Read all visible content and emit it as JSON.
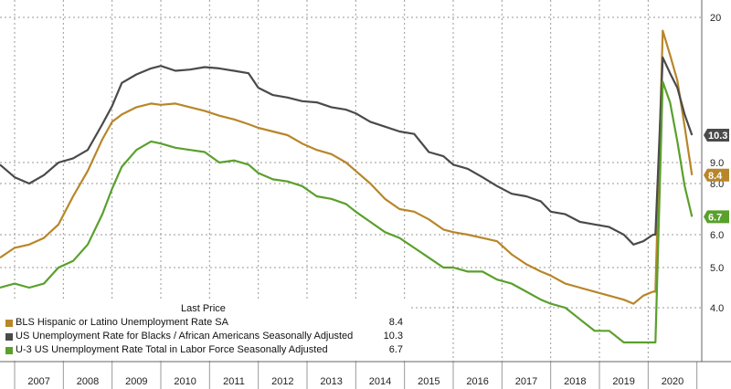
{
  "chart_data": {
    "type": "line",
    "legend_header": "Last Price",
    "x_ticks": [
      "2007",
      "2008",
      "2009",
      "2010",
      "2011",
      "2012",
      "2013",
      "2014",
      "2015",
      "2016",
      "2017",
      "2018",
      "2019",
      "2020"
    ],
    "y_ticks": [
      "4.0",
      "5.0",
      "6.0",
      "8.0",
      "9.0",
      "20"
    ],
    "xlim": [
      2006.7,
      2021.1
    ],
    "series": [
      {
        "name": "BLS Hispanic or Latino Unemployment Rate SA",
        "last_value": "8.4",
        "color": "#b8862a",
        "x": [
          2006.7,
          2007.0,
          2007.3,
          2007.6,
          2007.9,
          2008.2,
          2008.5,
          2008.8,
          2009.0,
          2009.2,
          2009.5,
          2009.8,
          2010.0,
          2010.3,
          2010.6,
          2010.9,
          2011.2,
          2011.5,
          2011.8,
          2012.0,
          2012.3,
          2012.6,
          2012.9,
          2013.2,
          2013.5,
          2013.8,
          2014.0,
          2014.3,
          2014.6,
          2014.9,
          2015.2,
          2015.5,
          2015.8,
          2016.0,
          2016.3,
          2016.6,
          2016.9,
          2017.2,
          2017.5,
          2017.8,
          2018.0,
          2018.3,
          2018.6,
          2018.9,
          2019.2,
          2019.5,
          2019.7,
          2019.9,
          2020.1,
          2020.15,
          2020.3,
          2020.45,
          2020.6,
          2020.75,
          2020.9
        ],
        "values": [
          5.3,
          5.6,
          5.7,
          5.9,
          6.4,
          7.5,
          8.6,
          10.1,
          11.4,
          12.0,
          12.6,
          12.9,
          12.8,
          12.9,
          12.6,
          12.3,
          11.9,
          11.6,
          11.2,
          10.9,
          10.6,
          10.3,
          9.9,
          9.6,
          9.4,
          9.0,
          8.6,
          8.0,
          7.4,
          7.0,
          6.9,
          6.6,
          6.2,
          6.1,
          6.0,
          5.9,
          5.8,
          5.4,
          5.1,
          4.9,
          4.8,
          4.6,
          4.5,
          4.4,
          4.3,
          4.2,
          4.1,
          4.3,
          4.4,
          4.4,
          18.9,
          16.9,
          14.8,
          11.0,
          8.4
        ]
      },
      {
        "name": "US Unemployment Rate for Blacks / African Americans Seasonally Adjusted",
        "last_value": "10.3",
        "color": "#4a4a4a",
        "x": [
          2006.7,
          2007.0,
          2007.3,
          2007.6,
          2007.9,
          2008.2,
          2008.5,
          2008.8,
          2009.0,
          2009.2,
          2009.5,
          2009.8,
          2010.0,
          2010.3,
          2010.6,
          2010.9,
          2011.2,
          2011.5,
          2011.8,
          2012.0,
          2012.3,
          2012.6,
          2012.9,
          2013.2,
          2013.5,
          2013.8,
          2014.0,
          2014.3,
          2014.6,
          2014.9,
          2015.2,
          2015.5,
          2015.8,
          2016.0,
          2016.3,
          2016.6,
          2016.9,
          2017.2,
          2017.5,
          2017.8,
          2018.0,
          2018.3,
          2018.6,
          2018.9,
          2019.2,
          2019.5,
          2019.7,
          2019.9,
          2020.1,
          2020.15,
          2020.3,
          2020.45,
          2020.6,
          2020.75,
          2020.9
        ],
        "values": [
          8.9,
          8.3,
          8.0,
          8.4,
          9.0,
          9.2,
          9.6,
          11.2,
          12.7,
          14.6,
          15.3,
          15.8,
          16.0,
          15.6,
          15.7,
          15.9,
          15.8,
          15.6,
          15.4,
          14.2,
          13.6,
          13.4,
          13.1,
          13.0,
          12.6,
          12.4,
          12.1,
          11.4,
          11.0,
          10.6,
          10.4,
          9.5,
          9.3,
          8.9,
          8.7,
          8.3,
          7.9,
          7.6,
          7.5,
          7.3,
          6.9,
          6.8,
          6.5,
          6.4,
          6.3,
          6.0,
          5.7,
          5.8,
          6.0,
          6.0,
          16.7,
          15.4,
          14.2,
          12.0,
          10.3
        ]
      },
      {
        "name": "U-3 US Unemployment Rate Total in Labor Force Seasonally Adjusted",
        "last_value": "6.7",
        "color": "#5aa02c",
        "x": [
          2006.7,
          2007.0,
          2007.3,
          2007.6,
          2007.9,
          2008.2,
          2008.5,
          2008.8,
          2009.0,
          2009.2,
          2009.5,
          2009.8,
          2010.0,
          2010.3,
          2010.6,
          2010.9,
          2011.2,
          2011.5,
          2011.8,
          2012.0,
          2012.3,
          2012.6,
          2012.9,
          2013.2,
          2013.5,
          2013.8,
          2014.0,
          2014.3,
          2014.6,
          2014.9,
          2015.2,
          2015.5,
          2015.8,
          2016.0,
          2016.3,
          2016.6,
          2016.9,
          2017.2,
          2017.5,
          2017.8,
          2018.0,
          2018.3,
          2018.6,
          2018.9,
          2019.2,
          2019.5,
          2019.7,
          2019.9,
          2020.1,
          2020.15,
          2020.3,
          2020.45,
          2020.6,
          2020.75,
          2020.9
        ],
        "values": [
          4.5,
          4.6,
          4.5,
          4.6,
          5.0,
          5.2,
          5.7,
          6.8,
          7.8,
          8.8,
          9.6,
          10.0,
          9.9,
          9.7,
          9.6,
          9.5,
          9.0,
          9.1,
          8.9,
          8.5,
          8.2,
          8.1,
          7.9,
          7.5,
          7.4,
          7.2,
          6.9,
          6.5,
          6.1,
          5.9,
          5.6,
          5.3,
          5.0,
          5.0,
          4.9,
          4.9,
          4.7,
          4.6,
          4.4,
          4.2,
          4.1,
          4.0,
          3.9,
          3.8,
          3.8,
          3.7,
          3.6,
          3.5,
          3.6,
          3.5,
          14.7,
          13.0,
          10.0,
          7.9,
          6.7
        ]
      }
    ]
  }
}
